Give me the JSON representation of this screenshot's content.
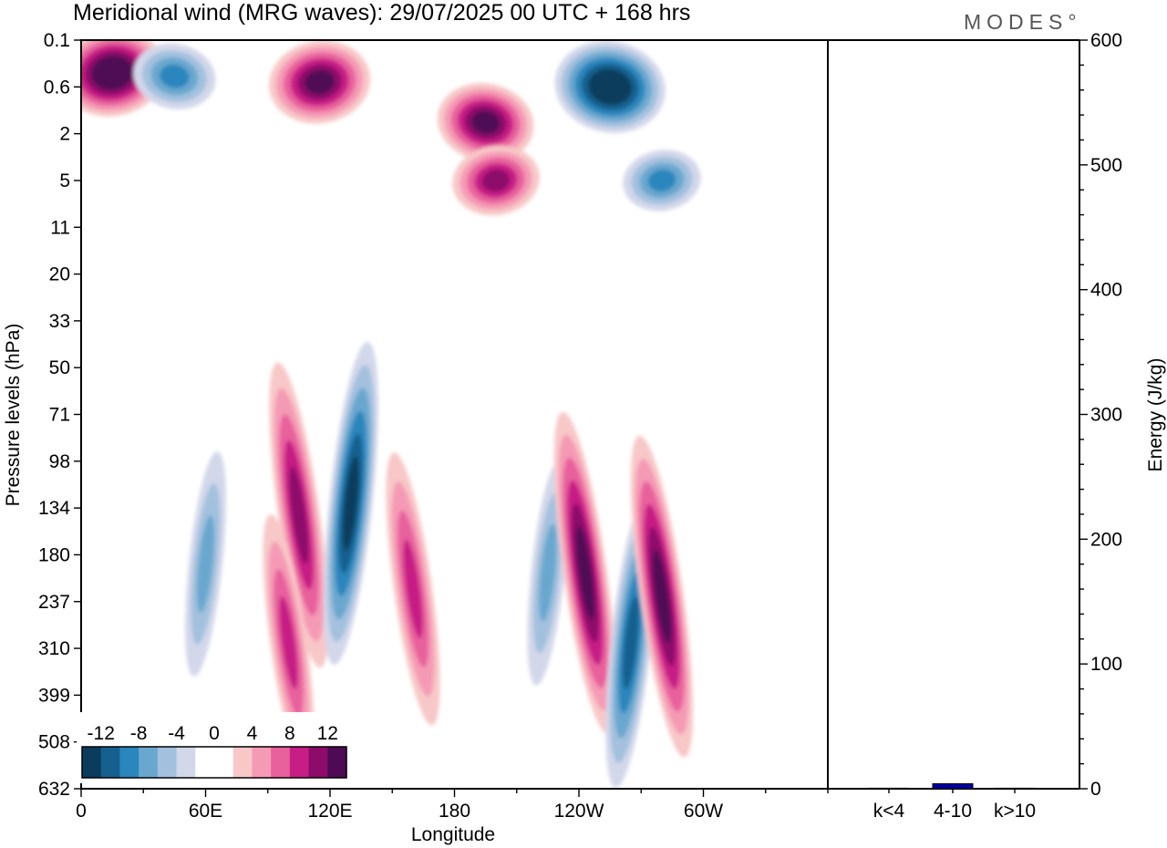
{
  "chart_data": [
    {
      "type": "heatmap",
      "title": "Meridional wind (MRG waves):  29/07/2025  00 UTC  + 168 hrs",
      "xlabel": "Longitude",
      "ylabel": "Pressure levels (hPa)",
      "x_ticks": [
        "0",
        "60E",
        "120E",
        "180",
        "120W",
        "60W"
      ],
      "y_ticks": [
        "0.1",
        "0.6",
        "2",
        "5",
        "11",
        "20",
        "33",
        "50",
        "71",
        "98",
        "134",
        "180",
        "237",
        "310",
        "399",
        "508",
        "632"
      ],
      "colorbar": {
        "labels": [
          "-12",
          "-8",
          "-4",
          "0",
          "4",
          "8",
          "12"
        ],
        "levels": [
          -14,
          -12,
          -10,
          -8,
          -6,
          -4,
          -2,
          0,
          2,
          4,
          6,
          8,
          10,
          12,
          14
        ],
        "colors": [
          "#0b3c5d",
          "#15608f",
          "#2b86bd",
          "#6aa7cf",
          "#a3c1de",
          "#d3d7ea",
          "#ffffff",
          "#ffffff",
          "#f8c8c8",
          "#f59ab5",
          "#e8609c",
          "#c71e85",
          "#8d0c6b",
          "#4f0a55"
        ]
      },
      "features": [
        {
          "lon": 15,
          "p": 0.35,
          "value": 14
        },
        {
          "lon": 45,
          "p": 0.4,
          "value": -9
        },
        {
          "lon": 115,
          "p": 0.5,
          "value": 13
        },
        {
          "lon": 195,
          "p": 1.5,
          "value": 12
        },
        {
          "lon": 200,
          "p": 5,
          "value": 10
        },
        {
          "lon": 255,
          "p": 0.6,
          "value": -15
        },
        {
          "lon": 280,
          "p": 5,
          "value": -8
        },
        {
          "lon": 105,
          "p": 140,
          "value": 11
        },
        {
          "lon": 130,
          "p": 130,
          "value": -12
        },
        {
          "lon": 160,
          "p": 220,
          "value": 9
        },
        {
          "lon": 225,
          "p": 200,
          "value": -6
        },
        {
          "lon": 243,
          "p": 200,
          "value": 12
        },
        {
          "lon": 265,
          "p": 300,
          "value": -10
        },
        {
          "lon": 280,
          "p": 230,
          "value": 12
        },
        {
          "lon": 60,
          "p": 190,
          "value": -6
        },
        {
          "lon": 100,
          "p": 300,
          "value": 8
        }
      ]
    },
    {
      "type": "bar",
      "ylabel": "Energy (J/kg)",
      "categories": [
        "k<4",
        "4-10",
        "k>10"
      ],
      "values": [
        0,
        4,
        0
      ],
      "ylim": [
        0,
        600
      ],
      "y_ticks": [
        0,
        100,
        200,
        300,
        400,
        500,
        600
      ],
      "bar_color": "#0000a0"
    }
  ],
  "brand": "MODES°"
}
